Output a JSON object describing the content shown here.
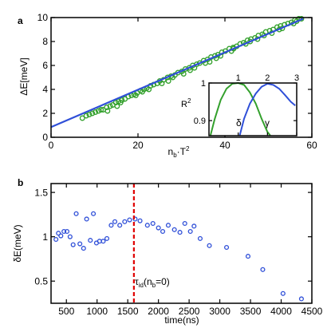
{
  "colors": {
    "green": "#33a02c",
    "blue": "#2f4fd8",
    "red": "#e00000",
    "axis": "#000000"
  },
  "chart_data": [
    {
      "panel": "a",
      "type": "scatter",
      "xlabel_base": "n",
      "xlabel_sub": "b",
      "xlabel_rest": "·T",
      "xlabel_sup": "2",
      "ylabel": "ΔE[meV]",
      "xlim": [
        0,
        60
      ],
      "ylim": [
        0,
        10
      ],
      "xticks": [
        0,
        20,
        40,
        60
      ],
      "yticks": [
        0,
        2,
        4,
        6,
        8,
        10
      ],
      "xtick_labels": [
        "0",
        "20",
        "40",
        "60"
      ],
      "ytick_labels": [
        "0",
        "2",
        "4",
        "6",
        "8",
        "10"
      ],
      "grid": false,
      "series": [
        {
          "kind": "points",
          "color": "green",
          "x": [
            7.2,
            8.1,
            8.8,
            9.5,
            10.2,
            10.9,
            11.5,
            12.0,
            12.8,
            13.6,
            14.2,
            14.9,
            15.5,
            16.3,
            17.0,
            17.8,
            18.5,
            19.1,
            19.8,
            20.6,
            21.4,
            22.0,
            22.9,
            23.6,
            24.4,
            25.0,
            25.9,
            26.8,
            27.6,
            28.5,
            29.2,
            30.1,
            30.9,
            31.8,
            32.6,
            33.5,
            34.2,
            35.1,
            36.0,
            36.8,
            37.7,
            38.4,
            39.3,
            40.1,
            41.0,
            41.9,
            42.7,
            43.5,
            44.3,
            45.2,
            46.0,
            46.9,
            47.7,
            48.6,
            49.4,
            50.3,
            51.1,
            52.0,
            52.8,
            53.7,
            54.5,
            55.3,
            56.1,
            57.0,
            57.6,
            13.0,
            16.0,
            19.5,
            22.5,
            25.5,
            28.0,
            30.5,
            33.0,
            36.5,
            39.0,
            41.5,
            44.8,
            47.5,
            50.8,
            53.2,
            55.8,
            15.2,
            21.0,
            27.0,
            32.0,
            35.5,
            38.0,
            42.0,
            45.8,
            49.0,
            52.5,
            56.5
          ],
          "y": [
            1.6,
            1.8,
            1.9,
            2.0,
            2.1,
            2.2,
            2.3,
            2.3,
            2.5,
            2.6,
            2.7,
            2.9,
            3.0,
            3.1,
            3.2,
            3.4,
            3.5,
            3.6,
            3.7,
            3.9,
            4.0,
            4.1,
            4.3,
            4.4,
            4.5,
            4.7,
            4.8,
            5.0,
            5.1,
            5.2,
            5.4,
            5.5,
            5.7,
            5.8,
            6.0,
            6.1,
            6.2,
            6.4,
            6.5,
            6.7,
            6.8,
            6.9,
            7.1,
            7.2,
            7.4,
            7.5,
            7.6,
            7.8,
            7.9,
            8.1,
            8.2,
            8.3,
            8.5,
            8.6,
            8.8,
            8.9,
            9.0,
            9.2,
            9.3,
            9.4,
            9.5,
            9.6,
            9.8,
            9.9,
            9.9,
            2.2,
            2.9,
            3.5,
            4.0,
            4.5,
            5.0,
            5.3,
            5.8,
            6.3,
            6.8,
            7.2,
            7.8,
            8.2,
            8.7,
            9.1,
            9.5,
            2.6,
            3.8,
            4.7,
            5.6,
            6.2,
            6.6,
            7.4,
            8.0,
            8.5,
            9.0,
            9.7
          ]
        },
        {
          "kind": "line",
          "color": "blue",
          "x": [
            0,
            58
          ],
          "y": [
            0.85,
            9.9
          ]
        }
      ]
    },
    {
      "panel": "a-inset",
      "type": "line",
      "ylabel": "R",
      "ylabel_sup": "2",
      "xlim": [
        0,
        3
      ],
      "ylim": [
        0.86,
        1.0
      ],
      "xticks": [
        1,
        2,
        3
      ],
      "xtick_labels": [
        "1",
        "2",
        "3"
      ],
      "yticks": [
        0.9,
        1.0
      ],
      "ytick_labels": [
        "0.9",
        "1"
      ],
      "series": [
        {
          "name": "δ",
          "color": "green",
          "x": [
            0.05,
            0.2,
            0.4,
            0.6,
            0.8,
            1.0,
            1.2,
            1.4,
            1.6,
            1.8,
            2.0,
            2.1
          ],
          "y": [
            0.86,
            0.905,
            0.955,
            0.985,
            0.998,
            1.0,
            0.995,
            0.975,
            0.945,
            0.905,
            0.87,
            0.86
          ]
        },
        {
          "name": "γ",
          "color": "blue",
          "x": [
            1.05,
            1.2,
            1.4,
            1.6,
            1.8,
            2.0,
            2.2,
            2.4,
            2.6,
            2.8,
            2.95
          ],
          "y": [
            0.86,
            0.905,
            0.945,
            0.972,
            0.99,
            0.998,
            0.995,
            0.985,
            0.968,
            0.95,
            0.94
          ]
        }
      ]
    },
    {
      "panel": "b",
      "type": "scatter",
      "xlabel": "time(ns)",
      "ylabel": "δE(meV)",
      "xlim": [
        250,
        4500
      ],
      "ylim": [
        0.25,
        1.6
      ],
      "xticks": [
        500,
        1000,
        1500,
        2000,
        2500,
        3000,
        3500,
        4000,
        4500
      ],
      "xtick_labels": [
        "500",
        "1000",
        "1500",
        "2000",
        "2500",
        "3000",
        "3500",
        "4000",
        "4500"
      ],
      "yticks": [
        0.5,
        1.0,
        1.5
      ],
      "ytick_labels": [
        "0.5",
        "1",
        "1.5"
      ],
      "grid": false,
      "series": [
        {
          "kind": "points",
          "color": "blue",
          "x": [
            330,
            370,
            410,
            460,
            510,
            560,
            610,
            660,
            720,
            780,
            830,
            890,
            940,
            990,
            1040,
            1100,
            1160,
            1230,
            1290,
            1370,
            1450,
            1530,
            1620,
            1700,
            1820,
            1910,
            2000,
            2070,
            2160,
            2260,
            2350,
            2430,
            2520,
            2580,
            2680,
            2830,
            3110,
            3460,
            3700,
            4030,
            4330
          ],
          "y": [
            0.97,
            1.04,
            1.01,
            1.06,
            1.06,
            1.0,
            0.91,
            1.26,
            0.92,
            0.87,
            1.2,
            0.96,
            1.26,
            0.93,
            0.95,
            0.95,
            0.98,
            1.13,
            1.17,
            1.13,
            1.17,
            1.19,
            1.2,
            1.18,
            1.13,
            1.15,
            1.1,
            1.06,
            1.13,
            1.08,
            1.05,
            1.15,
            1.06,
            1.12,
            0.98,
            0.9,
            0.88,
            0.78,
            0.63,
            0.36,
            0.3
          ]
        }
      ],
      "vline": {
        "x": 1600,
        "color": "red"
      },
      "annotation": {
        "base": "τ",
        "sub": "id",
        "rest": "(n",
        "sub2": "b",
        "tail": "=0)"
      }
    }
  ],
  "panel_labels": {
    "a": "a",
    "b": "b"
  }
}
